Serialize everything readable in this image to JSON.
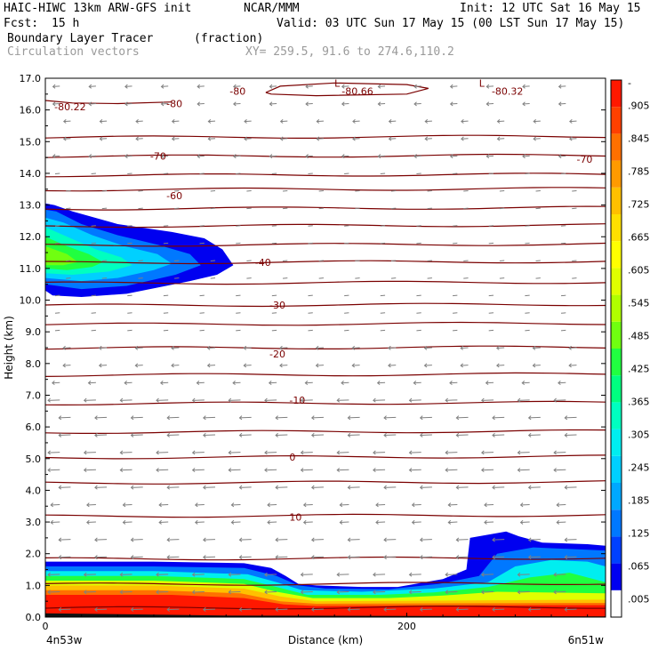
{
  "header": {
    "model": "HAIC-HIWC 13km ARW-GFS init",
    "org": "NCAR/MMM",
    "init": "Init: 12 UTC Sat 16 May 15",
    "fcst_label": "Fcst:",
    "fcst_value": "15 h",
    "valid": "Valid: 03 UTC Sun 17 May 15 (00 LST Sun 17 May 15)",
    "field": "Boundary Layer Tracer",
    "field_units": "(fraction)",
    "vectors": "Circulation vectors",
    "xy": "XY= 259.5, 91.6 to 274.6,110.2"
  },
  "colors": {
    "contour": "#7a0000",
    "vector": "#808080",
    "scale": [
      "#ffffff",
      "#0000f0",
      "#0040ff",
      "#0078ff",
      "#00a8ff",
      "#00d0ff",
      "#00eef0",
      "#00ffc0",
      "#00ff80",
      "#20ff40",
      "#70ff10",
      "#b0ff00",
      "#e0ff00",
      "#ffff00",
      "#ffe000",
      "#ffc000",
      "#ff9a00",
      "#ff7000",
      "#ff4000",
      "#ff1800"
    ]
  },
  "chart_data": {
    "type": "heatmap",
    "xlabel": "Distance (km)",
    "ylabel": "Height (km)",
    "xlim": [
      0,
      310
    ],
    "ylim": [
      0,
      17
    ],
    "x_ticks": [
      {
        "value": 0,
        "label": "0"
      },
      {
        "value": 200,
        "label": "200"
      }
    ],
    "y_ticks": [
      "0.0",
      "1.0",
      "2.0",
      "3.0",
      "4.0",
      "5.0",
      "6.0",
      "7.0",
      "8.0",
      "9.0",
      "10.0",
      "11.0",
      "12.0",
      "13.0",
      "14.0",
      "15.0",
      "16.0",
      "17.0"
    ],
    "left_endpoint": "4n53w",
    "right_endpoint": "6n51w",
    "colorbar_labels": [
      ".005",
      ".065",
      ".125",
      ".185",
      ".245",
      ".305",
      ".365",
      ".425",
      ".485",
      ".545",
      ".605",
      ".665",
      ".725",
      ".785",
      ".845",
      ".905",
      "-"
    ],
    "contour_labels": [
      {
        "text": "10",
        "x": 135,
        "y": 3.15
      },
      {
        "text": "0",
        "x": 135,
        "y": 5.05
      },
      {
        "text": "-10",
        "x": 135,
        "y": 6.85
      },
      {
        "text": "-20",
        "x": 124,
        "y": 8.3
      },
      {
        "text": "-30",
        "x": 124,
        "y": 9.85
      },
      {
        "text": "-40",
        "x": 116,
        "y": 11.2
      },
      {
        "text": "-60",
        "x": 67,
        "y": 13.3
      },
      {
        "text": "-70",
        "x": 58,
        "y": 14.55
      },
      {
        "text": "-70",
        "x": 294,
        "y": 14.45
      },
      {
        "text": "-80",
        "x": 67,
        "y": 16.2
      },
      {
        "text": "-80",
        "x": 102,
        "y": 16.6
      },
      {
        "text": "-80.22",
        "x": 5,
        "y": 16.1
      },
      {
        "text": "-80.66",
        "x": 164,
        "y": 16.6
      },
      {
        "text": "-80.32",
        "x": 247,
        "y": 16.6
      }
    ],
    "low_labels": [
      {
        "text": "L",
        "x": 160,
        "y": 16.85
      },
      {
        "text": "L",
        "x": 240,
        "y": 16.85
      }
    ],
    "isotherm_heights_km": [
      0.3,
      1.05,
      1.85,
      3.2,
      4.25,
      5.05,
      5.85,
      6.75,
      7.65,
      8.5,
      9.25,
      9.85,
      10.55,
      11.2,
      11.75,
      12.35,
      12.9,
      13.5,
      13.95,
      14.55,
      15.15
    ]
  }
}
